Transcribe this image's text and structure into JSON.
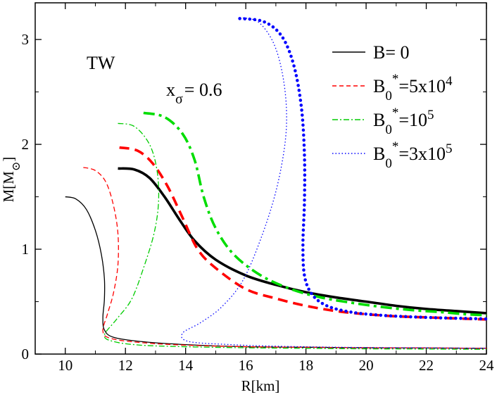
{
  "chart_data": {
    "type": "line",
    "title": "",
    "xlabel": "R[km]",
    "ylabel": "M[M",
    "ylabel_symbol": "⊙",
    "ylabel_close": "]",
    "xlim": [
      9,
      24
    ],
    "ylim": [
      0,
      3.35
    ],
    "xticks": [
      10,
      12,
      14,
      16,
      18,
      20,
      22,
      24
    ],
    "yticks": [
      0,
      1,
      2,
      3
    ],
    "xtick_labels": [
      "10",
      "12",
      "14",
      "16",
      "18",
      "20",
      "22",
      "24"
    ],
    "ytick_labels": [
      "0",
      "1",
      "2",
      "3"
    ],
    "grid": false,
    "legend_position": "top-right",
    "annotations": {
      "model": "TW",
      "x_sigma_base": "x",
      "x_sigma_sub": "σ",
      "x_sigma_value": "= 0.6"
    },
    "legend": [
      {
        "label_parts": {
          "base": "B= 0",
          "sub": "",
          "sup": "",
          "after": "",
          "after_sup": ""
        }
      },
      {
        "label_parts": {
          "base": "B",
          "sub": "0",
          "sup": "*",
          "after": "=5x10",
          "after_sup": "4"
        }
      },
      {
        "label_parts": {
          "base": "B",
          "sub": "0",
          "sup": "*",
          "after": "=10",
          "after_sup": "5"
        }
      },
      {
        "label_parts": {
          "base": "B",
          "sub": "0",
          "sup": "*",
          "after": "=3x10",
          "after_sup": "5"
        }
      }
    ],
    "series": [
      {
        "name": "B=0 thin",
        "legend_index": 0,
        "color": "#000000",
        "dash": "solid",
        "points": [
          [
            10.0,
            1.5
          ],
          [
            10.35,
            1.48
          ],
          [
            10.7,
            1.38
          ],
          [
            11.0,
            1.18
          ],
          [
            11.2,
            0.95
          ],
          [
            11.3,
            0.72
          ],
          [
            11.3,
            0.52
          ],
          [
            11.25,
            0.35
          ],
          [
            11.3,
            0.23
          ],
          [
            11.6,
            0.16
          ],
          [
            12.5,
            0.12
          ],
          [
            14,
            0.09
          ],
          [
            16,
            0.07
          ],
          [
            18,
            0.065
          ],
          [
            20,
            0.06
          ],
          [
            22,
            0.058
          ],
          [
            24,
            0.055
          ]
        ]
      },
      {
        "name": "B=0 thick",
        "legend_index": 0,
        "color": "#000000",
        "dash": "solid",
        "points": [
          [
            11.75,
            1.77
          ],
          [
            12.3,
            1.76
          ],
          [
            12.8,
            1.68
          ],
          [
            13.3,
            1.5
          ],
          [
            13.8,
            1.28
          ],
          [
            14.3,
            1.08
          ],
          [
            15,
            0.9
          ],
          [
            16,
            0.75
          ],
          [
            17,
            0.66
          ],
          [
            18,
            0.59
          ],
          [
            19,
            0.54
          ],
          [
            20,
            0.5
          ],
          [
            21,
            0.46
          ],
          [
            22,
            0.43
          ],
          [
            23,
            0.41
          ],
          [
            24,
            0.39
          ]
        ]
      },
      {
        "name": "B0*=5x10^4 thin",
        "legend_index": 1,
        "color": "#ff0000",
        "dash": "dashed",
        "points": [
          [
            10.6,
            1.78
          ],
          [
            11.0,
            1.75
          ],
          [
            11.35,
            1.64
          ],
          [
            11.6,
            1.42
          ],
          [
            11.75,
            1.15
          ],
          [
            11.75,
            0.85
          ],
          [
            11.6,
            0.58
          ],
          [
            11.4,
            0.38
          ],
          [
            11.25,
            0.22
          ],
          [
            11.5,
            0.15
          ],
          [
            12.5,
            0.11
          ],
          [
            14,
            0.085
          ],
          [
            16,
            0.07
          ],
          [
            18,
            0.065
          ],
          [
            20,
            0.06
          ],
          [
            22,
            0.058
          ],
          [
            24,
            0.055
          ]
        ]
      },
      {
        "name": "B0*=5x10^4 thick",
        "legend_index": 1,
        "color": "#ff0000",
        "dash": "dashed",
        "points": [
          [
            11.8,
            1.97
          ],
          [
            12.4,
            1.94
          ],
          [
            12.9,
            1.82
          ],
          [
            13.4,
            1.6
          ],
          [
            13.9,
            1.3
          ],
          [
            14.4,
            1.0
          ],
          [
            15,
            0.82
          ],
          [
            16,
            0.62
          ],
          [
            17,
            0.53
          ],
          [
            18,
            0.46
          ],
          [
            19,
            0.41
          ],
          [
            20,
            0.38
          ],
          [
            21,
            0.36
          ],
          [
            22,
            0.35
          ],
          [
            23,
            0.34
          ],
          [
            24,
            0.33
          ]
        ]
      },
      {
        "name": "B0*=10^5 thin",
        "legend_index": 2,
        "color": "#00cc00",
        "dash": "dashdot",
        "points": [
          [
            11.75,
            2.2
          ],
          [
            12.3,
            2.17
          ],
          [
            12.8,
            2.0
          ],
          [
            13.05,
            1.75
          ],
          [
            13.1,
            1.45
          ],
          [
            12.95,
            1.15
          ],
          [
            12.6,
            0.82
          ],
          [
            12.2,
            0.52
          ],
          [
            11.7,
            0.33
          ],
          [
            11.3,
            0.18
          ],
          [
            11.6,
            0.12
          ],
          [
            12.5,
            0.085
          ],
          [
            14,
            0.07
          ],
          [
            16,
            0.06
          ],
          [
            18,
            0.055
          ],
          [
            20,
            0.05
          ],
          [
            22,
            0.048
          ],
          [
            24,
            0.045
          ]
        ]
      },
      {
        "name": "B0*=10^5 thick",
        "legend_index": 2,
        "color": "#00dd00",
        "dash": "dashdot",
        "points": [
          [
            12.6,
            2.3
          ],
          [
            13.3,
            2.26
          ],
          [
            13.9,
            2.1
          ],
          [
            14.3,
            1.85
          ],
          [
            14.6,
            1.5
          ],
          [
            15,
            1.2
          ],
          [
            15.6,
            0.95
          ],
          [
            16.5,
            0.75
          ],
          [
            17.5,
            0.62
          ],
          [
            18.5,
            0.54
          ],
          [
            19.5,
            0.49
          ],
          [
            20.5,
            0.45
          ],
          [
            21.5,
            0.42
          ],
          [
            22.5,
            0.4
          ],
          [
            23.3,
            0.38
          ],
          [
            24,
            0.37
          ]
        ]
      },
      {
        "name": "B0*=3x10^5 thin",
        "legend_index": 3,
        "color": "#0000ff",
        "dash": "dotted",
        "points": [
          [
            15.8,
            3.21
          ],
          [
            16.4,
            3.17
          ],
          [
            16.9,
            2.98
          ],
          [
            17.2,
            2.7
          ],
          [
            17.35,
            2.35
          ],
          [
            17.3,
            2.0
          ],
          [
            17.0,
            1.55
          ],
          [
            16.5,
            1.1
          ],
          [
            15.9,
            0.7
          ],
          [
            15.2,
            0.45
          ],
          [
            14.5,
            0.3
          ],
          [
            13.9,
            0.2
          ],
          [
            14.1,
            0.12
          ],
          [
            15.5,
            0.09
          ],
          [
            17,
            0.075
          ],
          [
            19,
            0.065
          ],
          [
            21,
            0.06
          ],
          [
            24,
            0.055
          ]
        ]
      },
      {
        "name": "B0*=3x10^5 thick",
        "legend_index": 3,
        "color": "#0000ff",
        "dash": "dotted-thick",
        "points": [
          [
            15.8,
            3.2
          ],
          [
            16.6,
            3.17
          ],
          [
            17.2,
            3.03
          ],
          [
            17.6,
            2.75
          ],
          [
            17.85,
            2.35
          ],
          [
            17.95,
            1.9
          ],
          [
            17.95,
            1.45
          ],
          [
            17.9,
            1.05
          ],
          [
            17.95,
            0.75
          ],
          [
            18.2,
            0.57
          ],
          [
            18.7,
            0.46
          ],
          [
            19.5,
            0.4
          ],
          [
            20.5,
            0.37
          ],
          [
            21.5,
            0.355
          ],
          [
            22.5,
            0.345
          ],
          [
            23.3,
            0.34
          ],
          [
            24,
            0.335
          ]
        ]
      }
    ]
  }
}
